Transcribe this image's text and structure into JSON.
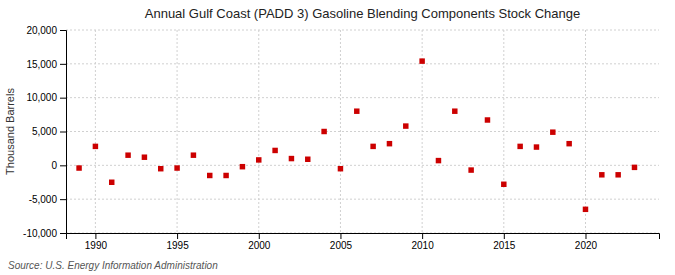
{
  "chart_data": {
    "type": "scatter",
    "title": "Annual Gulf Coast (PADD 3) Gasoline Blending Components Stock Change",
    "ylabel": "Thousand Barrels",
    "source": "Source: U.S. Energy Information Administration",
    "x": [
      1989,
      1990,
      1991,
      1992,
      1993,
      1994,
      1995,
      1996,
      1997,
      1998,
      1999,
      2000,
      2001,
      2002,
      2003,
      2004,
      2005,
      2006,
      2007,
      2008,
      2009,
      2010,
      2011,
      2012,
      2013,
      2014,
      2015,
      2016,
      2017,
      2018,
      2019,
      2020,
      2021,
      2022,
      2023
    ],
    "values": [
      -400,
      2800,
      -2500,
      1500,
      1200,
      -500,
      -400,
      1500,
      -1500,
      -1500,
      -200,
      800,
      2200,
      1000,
      900,
      5000,
      -500,
      8000,
      2800,
      3200,
      5800,
      15400,
      700,
      8000,
      -700,
      6700,
      -2800,
      2800,
      2700,
      4900,
      3200,
      -6500,
      -1400,
      -1400,
      -300
    ],
    "color": "#cc0000",
    "marker": "square",
    "xlim": [
      1988.2,
      2024.5
    ],
    "xticks": [
      1990,
      1995,
      2000,
      2005,
      2010,
      2015,
      2020
    ],
    "ylim": [
      -10000,
      20000
    ],
    "yticks": [
      {
        "value": -10000,
        "label": "-10,000"
      },
      {
        "value": -5000,
        "label": "-5,000"
      },
      0,
      {
        "value": 5000,
        "label": "5,000"
      },
      {
        "value": 10000,
        "label": "10,000"
      },
      {
        "value": 15000,
        "label": "15,000"
      },
      {
        "value": 20000,
        "label": "20,000"
      }
    ],
    "grid": true
  }
}
